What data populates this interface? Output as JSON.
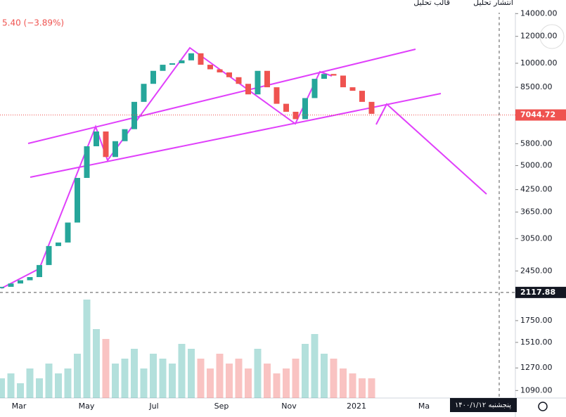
{
  "chart_data": {
    "type": "candlestick",
    "scale": "log",
    "header_change": "5.40 (−3.89%)",
    "toolbar": [
      "انتشار تحلیل",
      "قالب تحلیل"
    ],
    "date_label": "پنجشنبه ۱۴۰۰/۱/۱۲",
    "x_labels": [
      "Mar",
      "May",
      "Jul",
      "Sep",
      "Nov",
      "2021",
      "Ma"
    ],
    "values": [
      2200,
      2250,
      2300,
      2350,
      2550,
      2900,
      2970,
      3400,
      4600,
      5700,
      6300,
      5300,
      5900,
      6400,
      7700,
      8700,
      9500,
      9900,
      10000,
      10200,
      10700,
      9900,
      9600,
      9400,
      9100,
      8700,
      8100,
      9500,
      8500,
      7600,
      7200,
      6850,
      7900,
      9000,
      9300,
      9200,
      8500,
      8300,
      7700,
      7100
    ],
    "volumes": [
      20,
      25,
      15,
      30,
      20,
      35,
      25,
      30,
      45,
      100,
      70,
      60,
      35,
      40,
      50,
      30,
      45,
      40,
      35,
      55,
      50,
      40,
      30,
      45,
      35,
      40,
      30,
      50,
      35,
      25,
      30,
      40,
      55,
      65,
      45,
      40,
      30,
      25,
      20,
      20
    ],
    "volume_ylim": [
      0,
      100
    ],
    "up_color": "#26a69a",
    "down_color": "#ef5350",
    "ylim": [
      1036,
      15350
    ],
    "yticks": [
      {
        "value": 14000,
        "label": "14000.00"
      },
      {
        "value": 12000,
        "label": "12000.00"
      },
      {
        "value": 10000,
        "label": "10000.00"
      },
      {
        "value": 8500,
        "label": "8500.00"
      },
      {
        "value": 5800,
        "label": "5800.00"
      },
      {
        "value": 5000,
        "label": "5000.00"
      },
      {
        "value": 4250,
        "label": "4250.00"
      },
      {
        "value": 3650,
        "label": "3650.00"
      },
      {
        "value": 3050,
        "label": "3050.00"
      },
      {
        "value": 2450,
        "label": "2450.00"
      },
      {
        "value": 1750,
        "label": "1750.00"
      },
      {
        "value": 1510,
        "label": "1510.00"
      },
      {
        "value": 1270,
        "label": "1270.00"
      },
      {
        "value": 1090,
        "label": "1090.00"
      }
    ],
    "last_price": 7044.72,
    "crosshair_price": 2117.88
  }
}
